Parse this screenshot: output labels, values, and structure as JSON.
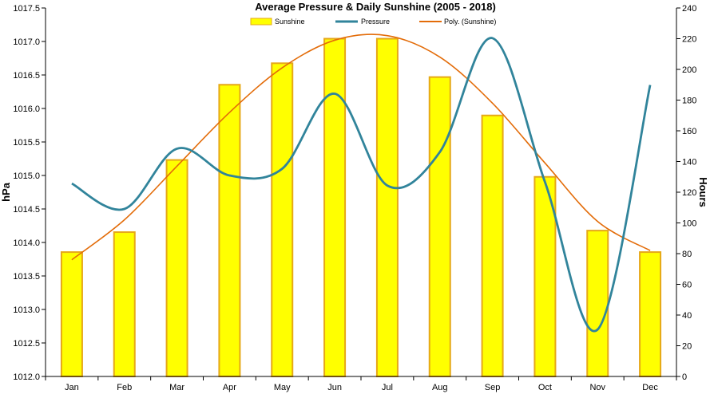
{
  "chart_data": {
    "type": "bar",
    "title": "Average Pressure & Daily Sunshine (2005 - 2018)",
    "categories": [
      "Jan",
      "Feb",
      "Mar",
      "Apr",
      "May",
      "Jun",
      "Jul",
      "Aug",
      "Sep",
      "Oct",
      "Nov",
      "Dec"
    ],
    "y_left": {
      "label": "hPa",
      "min": 1012.0,
      "max": 1017.5,
      "step": 0.5,
      "tick_labels": [
        "1012.0",
        "1012.5",
        "1013.0",
        "1013.5",
        "1014.0",
        "1014.5",
        "1015.0",
        "1015.5",
        "1016.0",
        "1016.5",
        "1017.0",
        "1017.5"
      ]
    },
    "y_right": {
      "label": "Hours",
      "min": 0,
      "max": 240,
      "step": 20,
      "tick_labels": [
        "0",
        "20",
        "40",
        "60",
        "80",
        "100",
        "120",
        "140",
        "160",
        "180",
        "200",
        "220",
        "240"
      ]
    },
    "series": [
      {
        "name": "Sunshine",
        "type": "bar",
        "axis": "right",
        "color": "#ffff00",
        "stroke": "#e6a817",
        "values": [
          81,
          94,
          141,
          190,
          204,
          220,
          220,
          195,
          170,
          130,
          95,
          81
        ]
      },
      {
        "name": "Pressure",
        "type": "line",
        "axis": "left",
        "color": "#31849b",
        "values": [
          1014.88,
          1014.5,
          1015.4,
          1015.0,
          1015.1,
          1016.22,
          1014.85,
          1015.35,
          1017.05,
          1014.9,
          1012.7,
          1016.35
        ]
      },
      {
        "name": "Poly. (Sunshine)",
        "type": "trendline",
        "axis": "right",
        "color": "#e36c09",
        "values": [
          76,
          102,
          137,
          172,
          201,
          219,
          222,
          208,
          178,
          139,
          101,
          82
        ]
      }
    ],
    "legend": {
      "placement": "top"
    },
    "grid": false
  }
}
